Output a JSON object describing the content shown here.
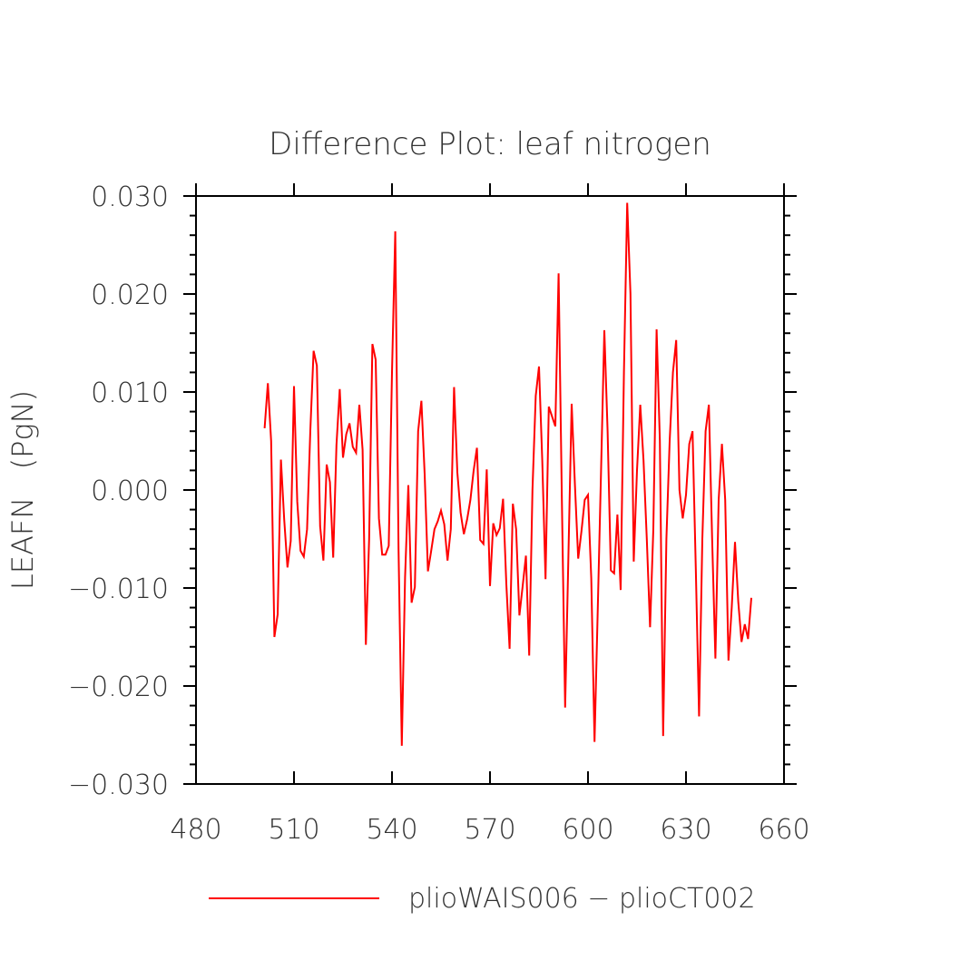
{
  "chart_data": {
    "type": "line",
    "title": "Difference Plot: leaf nitrogen",
    "xlabel": "",
    "ylabel": "LEAFN   (PgN)",
    "xlim": [
      480,
      660
    ],
    "ylim": [
      -0.03,
      0.03
    ],
    "xticks": [
      480,
      510,
      540,
      570,
      600,
      630,
      660
    ],
    "yticks": [
      -0.03,
      -0.02,
      -0.01,
      0.0,
      0.01,
      0.02,
      0.03
    ],
    "xtick_labels": [
      "480",
      "510",
      "540",
      "570",
      "600",
      "630",
      "660"
    ],
    "ytick_labels": [
      "−0.030",
      "−0.020",
      "−0.010",
      "0.000",
      "0.010",
      "0.020",
      "0.030"
    ],
    "grid": false,
    "legend": "bottom",
    "series": [
      {
        "name": "plioWAIS006 − plioCT002",
        "color": "#ff0000",
        "x": [
          501,
          502,
          503,
          504,
          505,
          506,
          507,
          508,
          509,
          510,
          511,
          512,
          513,
          514,
          515,
          516,
          517,
          518,
          519,
          520,
          521,
          522,
          523,
          524,
          525,
          526,
          527,
          528,
          529,
          530,
          531,
          532,
          533,
          534,
          535,
          536,
          537,
          538,
          539,
          540,
          541,
          542,
          543,
          544,
          545,
          546,
          547,
          548,
          549,
          550,
          551,
          552,
          553,
          554,
          555,
          556,
          557,
          558,
          559,
          560,
          561,
          562,
          563,
          564,
          565,
          566,
          567,
          568,
          569,
          570,
          571,
          572,
          573,
          574,
          575,
          576,
          577,
          578,
          579,
          580,
          581,
          582,
          583,
          584,
          585,
          586,
          587,
          588,
          589,
          590,
          591,
          592,
          593,
          594,
          595,
          596,
          597,
          598,
          599,
          600,
          601,
          602,
          603,
          604,
          605,
          606,
          607,
          608,
          609,
          610,
          611,
          612,
          613,
          614,
          615,
          616,
          617,
          618,
          619,
          620,
          621,
          622,
          623,
          624,
          625,
          626,
          627,
          628,
          629,
          630,
          631,
          632,
          633,
          634,
          635,
          636,
          637,
          638,
          639,
          640,
          641,
          642,
          643,
          644,
          645,
          646,
          647,
          648,
          649,
          650
        ],
        "values": [
          0.0063,
          0.0109,
          0.005,
          -0.015,
          -0.0127,
          0.0031,
          -0.003,
          -0.0079,
          -0.0052,
          0.0106,
          -0.0012,
          -0.0062,
          -0.0068,
          -0.004,
          0.0061,
          0.0142,
          0.0127,
          -0.0037,
          -0.0072,
          0.0026,
          0.0008,
          -0.0069,
          0.0046,
          0.0103,
          0.0033,
          0.0057,
          0.0068,
          0.0044,
          0.0038,
          0.0087,
          0.0041,
          -0.0158,
          -0.005,
          0.0149,
          0.0133,
          -0.0029,
          -0.0066,
          -0.0066,
          -0.0057,
          0.012,
          0.0264,
          -0.006,
          -0.0261,
          -0.0089,
          0.0005,
          -0.0115,
          -0.0099,
          0.006,
          0.0091,
          0.0016,
          -0.0083,
          -0.0062,
          -0.004,
          -0.0032,
          -0.0021,
          -0.0035,
          -0.0072,
          -0.004,
          0.0105,
          0.0018,
          -0.0023,
          -0.0045,
          -0.003,
          -0.001,
          0.002,
          0.0043,
          -0.0051,
          -0.0055,
          0.0021,
          -0.0098,
          -0.0034,
          -0.0046,
          -0.0039,
          -0.0009,
          -0.0096,
          -0.0162,
          -0.0014,
          -0.004,
          -0.0128,
          -0.0098,
          -0.0067,
          -0.0169,
          0.0,
          0.0096,
          0.0126,
          0.003,
          -0.0091,
          0.0085,
          0.0075,
          0.0065,
          0.0221,
          -0.001,
          -0.0222,
          -0.0068,
          0.0088,
          0.0005,
          -0.007,
          -0.0042,
          -0.001,
          -0.0005,
          -0.009,
          -0.0257,
          -0.012,
          0.002,
          0.0163,
          0.006,
          -0.0082,
          -0.0085,
          -0.0025,
          -0.0102,
          0.012,
          0.0293,
          0.02,
          -0.0073,
          0.002,
          0.0087,
          0.003,
          -0.005,
          -0.014,
          -0.004,
          0.0164,
          0.005,
          -0.0251,
          -0.005,
          0.005,
          0.012,
          0.0153,
          0.0,
          -0.0029,
          -0.0005,
          0.0047,
          0.006,
          -0.008,
          -0.0231,
          -0.005,
          0.006,
          0.0087,
          -0.005,
          -0.0172,
          -0.001,
          0.0047,
          -0.001,
          -0.0174,
          -0.012,
          -0.0053,
          -0.0114,
          -0.0155,
          -0.0137,
          -0.0152,
          -0.011
        ]
      }
    ]
  }
}
